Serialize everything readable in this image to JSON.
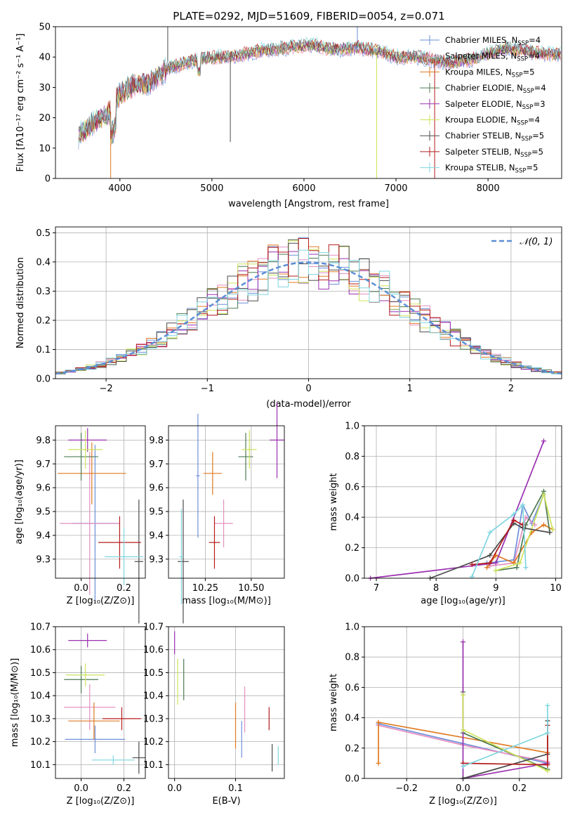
{
  "title": "PLATE=0292, MJD=51609, FIBERID=0054, z=0.071",
  "colors": {
    "chabrier_miles": "#6d8fd9",
    "salpeter_miles": "#e48fc0",
    "kroupa_miles": "#e07a22",
    "chabrier_elodie": "#4c7a52",
    "salpeter_elodie": "#9b30b0",
    "kroupa_elodie": "#cde35a",
    "chabrier_stelib": "#4b4b4b",
    "salpeter_stelib": "#b51c1c",
    "kroupa_stelib": "#7fd6e0",
    "normal": "#5b8fd6"
  },
  "legend": [
    {
      "name": "Chabrier MILES, N",
      "sub": "SSP",
      "eq": "=4",
      "color_key": "chabrier_miles"
    },
    {
      "name": "Salpeter MILES, N",
      "sub": "SSP",
      "eq": "=4",
      "color_key": "salpeter_miles"
    },
    {
      "name": "Kroupa MILES, N",
      "sub": "SSP",
      "eq": "=5",
      "color_key": "kroupa_miles"
    },
    {
      "name": "Chabrier ELODIE, N",
      "sub": "SSP",
      "eq": "=4",
      "color_key": "chabrier_elodie"
    },
    {
      "name": "Salpeter ELODIE, N",
      "sub": "SSP",
      "eq": "=3",
      "color_key": "salpeter_elodie"
    },
    {
      "name": "Kroupa ELODIE, N",
      "sub": "SSP",
      "eq": "=4",
      "color_key": "kroupa_elodie"
    },
    {
      "name": "Chabrier STELIB, N",
      "sub": "SSP",
      "eq": "=5",
      "color_key": "chabrier_stelib"
    },
    {
      "name": "Salpeter STELIB, N",
      "sub": "SSP",
      "eq": "=5",
      "color_key": "salpeter_stelib"
    },
    {
      "name": "Kroupa STELIB, N",
      "sub": "SSP",
      "eq": "=5",
      "color_key": "kroupa_stelib"
    }
  ],
  "chart_data": [
    {
      "id": "spectrum",
      "type": "line",
      "xlabel": "wavelength [Angstrom, rest frame]",
      "ylabel": "Flux [fλ10⁻¹⁷ erg cm⁻² s⁻¹ A⁻¹]",
      "xlim": [
        3300,
        8800
      ],
      "ylim": [
        0,
        50
      ],
      "xticks": [
        4000,
        5000,
        6000,
        7000,
        8000
      ],
      "yticks": [
        0,
        10,
        20,
        30,
        40,
        50
      ],
      "grid": false,
      "continuum": [
        [
          3550,
          14
        ],
        [
          3700,
          18
        ],
        [
          3800,
          20
        ],
        [
          3900,
          22
        ],
        [
          4000,
          28
        ],
        [
          4100,
          30
        ],
        [
          4200,
          31
        ],
        [
          4300,
          31
        ],
        [
          4400,
          33
        ],
        [
          4500,
          36
        ],
        [
          4700,
          38
        ],
        [
          4900,
          39.5
        ],
        [
          5100,
          40
        ],
        [
          5300,
          40.5
        ],
        [
          5500,
          42
        ],
        [
          5800,
          43
        ],
        [
          6100,
          44
        ],
        [
          6300,
          42.5
        ],
        [
          6600,
          43
        ],
        [
          6800,
          42
        ],
        [
          7000,
          40
        ],
        [
          7200,
          40
        ],
        [
          7400,
          39
        ],
        [
          7600,
          38
        ],
        [
          7800,
          39
        ],
        [
          8000,
          41
        ],
        [
          8200,
          43
        ],
        [
          8400,
          42
        ],
        [
          8600,
          41
        ],
        [
          8800,
          41
        ]
      ]
    },
    {
      "id": "residuals",
      "type": "step",
      "xlabel": "(data-model)/error",
      "ylabel": "Normed distribution",
      "xlim": [
        -2.5,
        2.5
      ],
      "ylim": [
        0,
        0.52
      ],
      "xticks": [
        -2,
        -1,
        0,
        1,
        2
      ],
      "yticks": [
        0.0,
        0.1,
        0.2,
        0.3,
        0.4,
        0.5
      ],
      "grid": true,
      "legend_label": "𝒩(0, 1)",
      "legend_position": "top-right"
    },
    {
      "id": "age_vs_Z",
      "type": "errorbar",
      "xlabel": "Z [log₁₀(Z/Z⊙)]",
      "ylabel": "age  [log₁₀(age/yr)]",
      "xlim": [
        -0.12,
        0.3
      ],
      "ylim": [
        9.22,
        9.86
      ],
      "xticks": [
        0.0,
        0.2
      ],
      "yticks": [
        9.3,
        9.4,
        9.5,
        9.6,
        9.7,
        9.8
      ],
      "points": [
        {
          "key": "chabrier_miles",
          "x": 0.065,
          "xerr": 0.11,
          "y": 9.45,
          "yerr": 0.33
        },
        {
          "key": "salpeter_miles",
          "x": 0.04,
          "xerr": 0.14,
          "y": 9.45,
          "yerr": 0.3
        },
        {
          "key": "kroupa_miles",
          "x": 0.05,
          "xerr": 0.16,
          "y": 9.66,
          "yerr": 0.13
        },
        {
          "key": "chabrier_elodie",
          "x": 0.0,
          "xerr": 0.08,
          "y": 9.73,
          "yerr": 0.1
        },
        {
          "key": "salpeter_elodie",
          "x": 0.03,
          "xerr": 0.09,
          "y": 9.8,
          "yerr": 0.05
        },
        {
          "key": "kroupa_elodie",
          "x": 0.02,
          "xerr": 0.08,
          "y": 9.76,
          "yerr": 0.08
        },
        {
          "key": "chabrier_stelib",
          "x": 0.27,
          "xerr": 0.02,
          "y": 9.29,
          "yerr": 0.26
        },
        {
          "key": "salpeter_stelib",
          "x": 0.18,
          "xerr": 0.1,
          "y": 9.37,
          "yerr": 0.11
        },
        {
          "key": "kroupa_stelib",
          "x": 0.2,
          "xerr": 0.09,
          "y": 9.31,
          "yerr": 0.12
        }
      ]
    },
    {
      "id": "age_vs_mass",
      "type": "errorbar",
      "xlabel": "mass [log₁₀(M/M⊙)]",
      "ylabel": "",
      "xlim": [
        10.05,
        10.68
      ],
      "ylim": [
        9.22,
        9.86
      ],
      "xticks": [
        10.25,
        10.5
      ],
      "yticks": [
        9.3,
        9.4,
        9.5,
        9.6,
        9.7,
        9.8
      ],
      "points": [
        {
          "key": "chabrier_miles",
          "x": 10.21,
          "xerr": 0.01,
          "y": 9.65,
          "yerr": 0.26
        },
        {
          "key": "salpeter_miles",
          "x": 10.35,
          "xerr": 0.05,
          "y": 9.45,
          "yerr": 0.1
        },
        {
          "key": "kroupa_miles",
          "x": 10.29,
          "xerr": 0.05,
          "y": 9.66,
          "yerr": 0.09
        },
        {
          "key": "chabrier_elodie",
          "x": 10.47,
          "xerr": 0.04,
          "y": 9.73,
          "yerr": 0.1
        },
        {
          "key": "salpeter_elodie",
          "x": 10.64,
          "xerr": 0.04,
          "y": 9.8,
          "yerr": 0.16
        },
        {
          "key": "kroupa_elodie",
          "x": 10.49,
          "xerr": 0.04,
          "y": 9.76,
          "yerr": 0.08
        },
        {
          "key": "chabrier_stelib",
          "x": 10.13,
          "xerr": 0.03,
          "y": 9.29,
          "yerr": 0.26
        },
        {
          "key": "salpeter_stelib",
          "x": 10.3,
          "xerr": 0.03,
          "y": 9.37,
          "yerr": 0.11
        },
        {
          "key": "kroupa_stelib",
          "x": 10.12,
          "xerr": 0.01,
          "y": 9.31,
          "yerr": 0.2
        }
      ]
    },
    {
      "id": "mw_vs_age",
      "type": "line",
      "xlabel": "age  [log₁₀(age/yr)]",
      "ylabel": "mass weight",
      "xlim": [
        6.8,
        10.1
      ],
      "ylim": [
        0,
        1
      ],
      "xticks": [
        7,
        8,
        9,
        10
      ],
      "yticks": [
        0.0,
        0.2,
        0.4,
        0.6,
        0.8,
        1.0
      ],
      "series": [
        {
          "key": "chabrier_miles",
          "x": [
            8.85,
            9.3,
            9.45,
            9.6,
            9.8
          ],
          "y": [
            0.1,
            0.12,
            0.48,
            0.36,
            0.55
          ]
        },
        {
          "key": "salpeter_miles",
          "x": [
            8.9,
            9.3,
            9.5,
            9.65
          ],
          "y": [
            0.08,
            0.1,
            0.4,
            0.35
          ]
        },
        {
          "key": "kroupa_miles",
          "x": [
            8.85,
            9.0,
            9.3,
            9.6,
            9.8,
            9.95
          ],
          "y": [
            0.07,
            0.15,
            0.1,
            0.3,
            0.35,
            0.32
          ]
        },
        {
          "key": "chabrier_elodie",
          "x": [
            9.0,
            9.35,
            9.5,
            9.8,
            9.9
          ],
          "y": [
            0.05,
            0.07,
            0.35,
            0.57,
            0.3
          ]
        },
        {
          "key": "salpeter_elodie",
          "x": [
            6.9,
            9.0,
            9.8
          ],
          "y": [
            0.0,
            0.1,
            0.9
          ]
        },
        {
          "key": "kroupa_elodie",
          "x": [
            9.0,
            9.4,
            9.8,
            9.95
          ],
          "y": [
            0.05,
            0.1,
            0.55,
            0.32
          ]
        },
        {
          "key": "chabrier_stelib",
          "x": [
            7.9,
            8.9,
            9.3,
            9.45,
            9.9
          ],
          "y": [
            0.0,
            0.15,
            0.36,
            0.33,
            0.3
          ]
        },
        {
          "key": "salpeter_stelib",
          "x": [
            8.6,
            8.9,
            9.3,
            9.45
          ],
          "y": [
            0.09,
            0.1,
            0.38,
            0.35
          ]
        },
        {
          "key": "kroupa_stelib",
          "x": [
            8.6,
            8.9,
            9.3,
            9.45,
            9.5
          ],
          "y": [
            0.01,
            0.3,
            0.42,
            0.48,
            0.07
          ]
        }
      ]
    },
    {
      "id": "mass_vs_Z",
      "type": "errorbar",
      "xlabel": "Z [log₁₀(Z/Z⊙)]",
      "ylabel": "mass [log₁₀(M/M⊙)]",
      "xlim": [
        -0.12,
        0.3
      ],
      "ylim": [
        10.04,
        10.7
      ],
      "xticks": [
        0.0,
        0.2
      ],
      "yticks": [
        10.1,
        10.2,
        10.3,
        10.4,
        10.5,
        10.6,
        10.7
      ],
      "points": [
        {
          "key": "chabrier_miles",
          "x": 0.065,
          "xerr": 0.14,
          "y": 10.21,
          "yerr": 0.06
        },
        {
          "key": "salpeter_miles",
          "x": 0.04,
          "xerr": 0.12,
          "y": 10.35,
          "yerr": 0.1
        },
        {
          "key": "kroupa_miles",
          "x": 0.06,
          "xerr": 0.12,
          "y": 10.29,
          "yerr": 0.08
        },
        {
          "key": "chabrier_elodie",
          "x": 0.0,
          "xerr": 0.08,
          "y": 10.47,
          "yerr": 0.06
        },
        {
          "key": "salpeter_elodie",
          "x": 0.03,
          "xerr": 0.09,
          "y": 10.64,
          "yerr": 0.03
        },
        {
          "key": "kroupa_elodie",
          "x": 0.02,
          "xerr": 0.09,
          "y": 10.49,
          "yerr": 0.05
        },
        {
          "key": "chabrier_stelib",
          "x": 0.27,
          "xerr": 0.03,
          "y": 10.13,
          "yerr": 0.07
        },
        {
          "key": "salpeter_stelib",
          "x": 0.19,
          "xerr": 0.09,
          "y": 10.3,
          "yerr": 0.05
        },
        {
          "key": "kroupa_stelib",
          "x": 0.15,
          "xerr": 0.1,
          "y": 10.12,
          "yerr": 0.02
        }
      ]
    },
    {
      "id": "mass_vs_ebv",
      "type": "errorbar",
      "xlabel": "E(B-V)",
      "ylabel": "",
      "xlim": [
        -0.01,
        0.18
      ],
      "ylim": [
        10.04,
        10.7
      ],
      "xticks": [
        0.0,
        0.1
      ],
      "yticks": [
        10.1,
        10.2,
        10.3,
        10.4,
        10.5,
        10.6,
        10.7
      ],
      "points": [
        {
          "key": "chabrier_miles",
          "x": 0.11,
          "xerr": 0,
          "y": 10.21,
          "yerr": 0.08
        },
        {
          "key": "salpeter_miles",
          "x": 0.115,
          "xerr": 0,
          "y": 10.34,
          "yerr": 0.1
        },
        {
          "key": "kroupa_miles",
          "x": 0.1,
          "xerr": 0,
          "y": 10.27,
          "yerr": 0.1
        },
        {
          "key": "chabrier_elodie",
          "x": 0.015,
          "xerr": 0,
          "y": 10.47,
          "yerr": 0.09
        },
        {
          "key": "salpeter_elodie",
          "x": 0.0,
          "xerr": 0,
          "y": 10.63,
          "yerr": 0.05
        },
        {
          "key": "kroupa_elodie",
          "x": 0.005,
          "xerr": 0,
          "y": 10.46,
          "yerr": 0.1
        },
        {
          "key": "chabrier_stelib",
          "x": 0.16,
          "xerr": 0,
          "y": 10.13,
          "yerr": 0.06
        },
        {
          "key": "salpeter_stelib",
          "x": 0.155,
          "xerr": 0,
          "y": 10.3,
          "yerr": 0.05
        },
        {
          "key": "kroupa_stelib",
          "x": 0.17,
          "xerr": 0,
          "y": 10.14,
          "yerr": 0.04
        }
      ]
    },
    {
      "id": "mw_vs_Z",
      "type": "line",
      "xlabel": "Z [log₁₀(Z/Z⊙)]",
      "ylabel": "mass weight",
      "xlim": [
        -0.35,
        0.35
      ],
      "ylim": [
        0,
        1
      ],
      "xticks": [
        -0.2,
        0.0,
        0.2
      ],
      "yticks": [
        0.0,
        0.2,
        0.4,
        0.6,
        0.8,
        1.0
      ],
      "series": [
        {
          "key": "chabrier_miles",
          "x": [
            -0.3,
            0.0,
            0.3
          ],
          "y": [
            0.36,
            0.23,
            0.1
          ]
        },
        {
          "key": "salpeter_miles",
          "x": [
            -0.3,
            0.0,
            0.3
          ],
          "y": [
            0.35,
            0.22,
            0.11
          ]
        },
        {
          "key": "kroupa_miles",
          "x": [
            -0.3,
            -0.3,
            0.3
          ],
          "y": [
            0.1,
            0.37,
            0.17
          ]
        },
        {
          "key": "chabrier_elodie",
          "x": [
            0.0,
            0.0,
            0.3
          ],
          "y": [
            0.57,
            0.3,
            0.06
          ]
        },
        {
          "key": "salpeter_elodie",
          "x": [
            0.0,
            0.0,
            0.3
          ],
          "y": [
            0.9,
            0.0,
            0.1
          ]
        },
        {
          "key": "kroupa_elodie",
          "x": [
            0.0,
            0.0,
            0.3
          ],
          "y": [
            0.55,
            0.32,
            0.05
          ]
        },
        {
          "key": "chabrier_stelib",
          "x": [
            0.0,
            0.3,
            0.3
          ],
          "y": [
            0.0,
            0.16,
            0.38
          ]
        },
        {
          "key": "salpeter_stelib",
          "x": [
            0.0,
            0.3,
            0.3
          ],
          "y": [
            0.1,
            0.09,
            0.35
          ]
        },
        {
          "key": "kroupa_stelib",
          "x": [
            0.0,
            0.3,
            0.3
          ],
          "y": [
            0.08,
            0.3,
            0.48
          ]
        }
      ]
    }
  ]
}
